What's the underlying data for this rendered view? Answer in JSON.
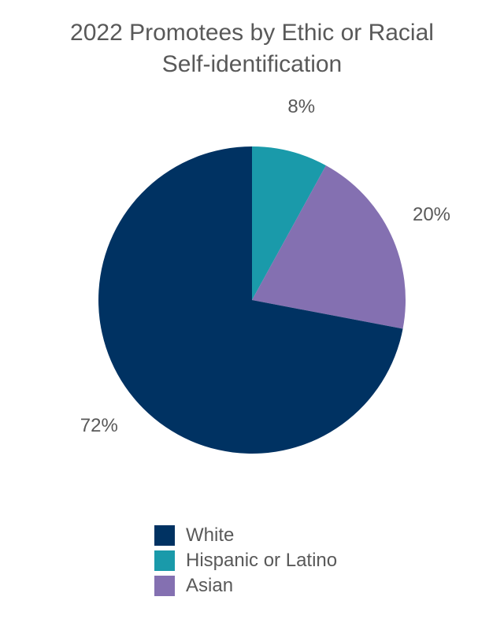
{
  "chart_data": {
    "type": "pie",
    "title": [
      "2022 Promotees by Ethic or Racial",
      "Self-identification"
    ],
    "categories": [
      "White",
      "Hispanic or Latino",
      "Asian"
    ],
    "values": [
      72,
      8,
      20
    ],
    "labels": [
      "72%",
      "8%",
      "20%"
    ],
    "colors": [
      "#003262",
      "#1a9aaa",
      "#8470b1"
    ],
    "slice_order": [
      "Hispanic or Latino",
      "Asian",
      "White"
    ],
    "legend_position": "bottom"
  }
}
